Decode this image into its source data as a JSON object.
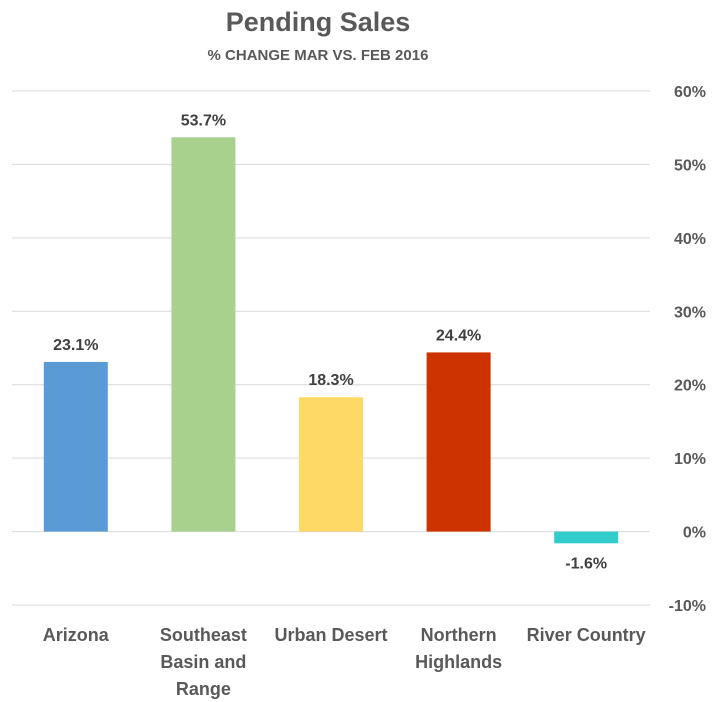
{
  "chart_data": {
    "type": "bar",
    "title": "Pending Sales",
    "subtitle": "% CHANGE MAR VS. FEB 2016",
    "categories": [
      [
        "Arizona"
      ],
      [
        "Southeast",
        "Basin and",
        "Range"
      ],
      [
        "Urban Desert"
      ],
      [
        "Northern",
        "Highlands"
      ],
      [
        "River Country"
      ]
    ],
    "values": [
      23.1,
      53.7,
      18.3,
      24.4,
      -1.6
    ],
    "data_labels": [
      "23.1%",
      "53.7%",
      "18.3%",
      "24.4%",
      "-1.6%"
    ],
    "colors": [
      "#5b9bd5",
      "#a9d18e",
      "#ffd966",
      "#cc3300",
      "#33cccc"
    ],
    "ylim": [
      -10,
      60
    ],
    "yticks": [
      60,
      50,
      40,
      30,
      20,
      10,
      0,
      -10
    ],
    "ytick_labels": [
      "60%",
      "50%",
      "40%",
      "30%",
      "20%",
      "10%",
      "0%",
      "-10%"
    ],
    "y_axis_position": "right",
    "grid": true,
    "legend": "none"
  }
}
